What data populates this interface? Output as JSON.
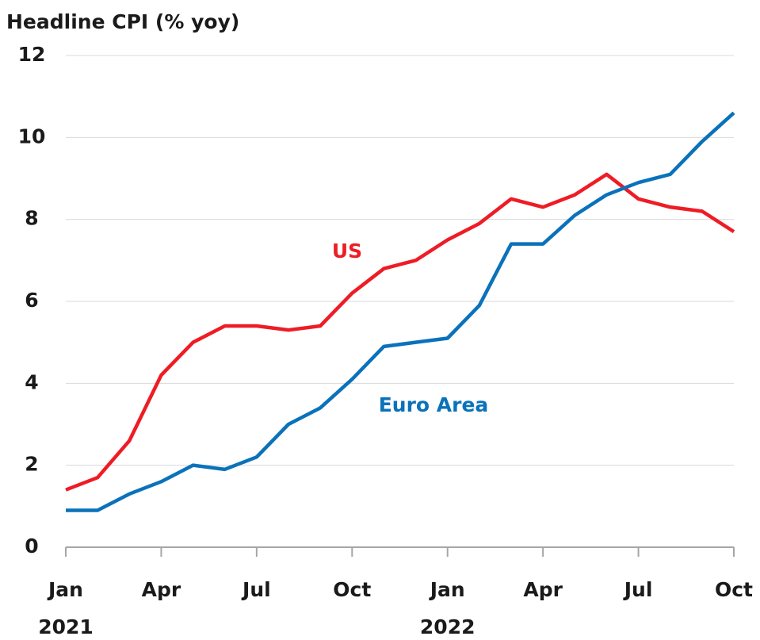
{
  "chart_data": {
    "type": "line",
    "title": "Headline CPI (% yoy)",
    "categories": [
      "Jan",
      null,
      null,
      "Apr",
      null,
      null,
      "Jul",
      null,
      null,
      "Oct",
      null,
      null,
      "Jan",
      null,
      null,
      "Apr",
      null,
      null,
      "Jul",
      null,
      null,
      "Oct"
    ],
    "x_groups": [
      {
        "label": "2021",
        "start": 0
      },
      {
        "label": "2022",
        "start": 12
      }
    ],
    "series": [
      {
        "name": "US",
        "color": "#ee1c25",
        "values": [
          1.4,
          1.7,
          2.6,
          4.2,
          5.0,
          5.4,
          5.4,
          5.3,
          5.4,
          6.2,
          6.8,
          7.0,
          7.5,
          7.9,
          8.5,
          8.3,
          8.6,
          9.1,
          8.5,
          8.3,
          8.2,
          7.7
        ]
      },
      {
        "name": "Euro Area",
        "color": "#0a72ba",
        "values": [
          0.9,
          0.9,
          1.3,
          1.6,
          2.0,
          1.9,
          2.2,
          3.0,
          3.4,
          4.1,
          4.9,
          5.0,
          5.1,
          5.9,
          7.4,
          7.4,
          8.1,
          8.6,
          8.9,
          9.1,
          9.9,
          10.6
        ]
      }
    ],
    "ylim": [
      0,
      12
    ],
    "yticks": [
      0,
      2,
      4,
      6,
      8,
      10,
      12
    ],
    "grid": true
  }
}
